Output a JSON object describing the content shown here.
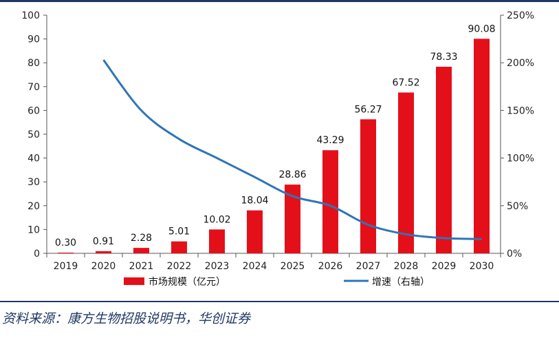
{
  "chart_data": {
    "type": "bar",
    "categories": [
      "2019",
      "2020",
      "2021",
      "2022",
      "2023",
      "2024",
      "2025",
      "2026",
      "2027",
      "2028",
      "2029",
      "2030"
    ],
    "series": [
      {
        "name": "市场规模（亿元）",
        "type": "bar",
        "axis": "left",
        "values": [
          0.3,
          0.91,
          2.28,
          5.01,
          10.02,
          18.04,
          28.86,
          43.29,
          56.27,
          67.52,
          78.33,
          90.08
        ],
        "labels": [
          "0.30",
          "0.91",
          "2.28",
          "5.01",
          "10.02",
          "18.04",
          "28.86",
          "43.29",
          "56.27",
          "67.52",
          "78.33",
          "90.08"
        ],
        "color": "#e3101a"
      },
      {
        "name": "增速（右轴）",
        "type": "line",
        "axis": "right",
        "values": [
          null,
          2.03,
          1.5,
          1.2,
          1.0,
          0.8,
          0.6,
          0.5,
          0.3,
          0.2,
          0.16,
          0.15
        ],
        "color": "#2e75b6"
      }
    ],
    "ylim": [
      0,
      100
    ],
    "yticks": [
      "0",
      "10",
      "20",
      "30",
      "40",
      "50",
      "60",
      "70",
      "80",
      "90",
      "100"
    ],
    "y2lim": [
      0,
      2.5
    ],
    "y2ticks": [
      "0%",
      "50%",
      "100%",
      "150%",
      "200%",
      "250%"
    ],
    "grid": false,
    "legend_position": "bottom"
  },
  "source_text": "资料来源：康方生物招股说明书，华创证券"
}
